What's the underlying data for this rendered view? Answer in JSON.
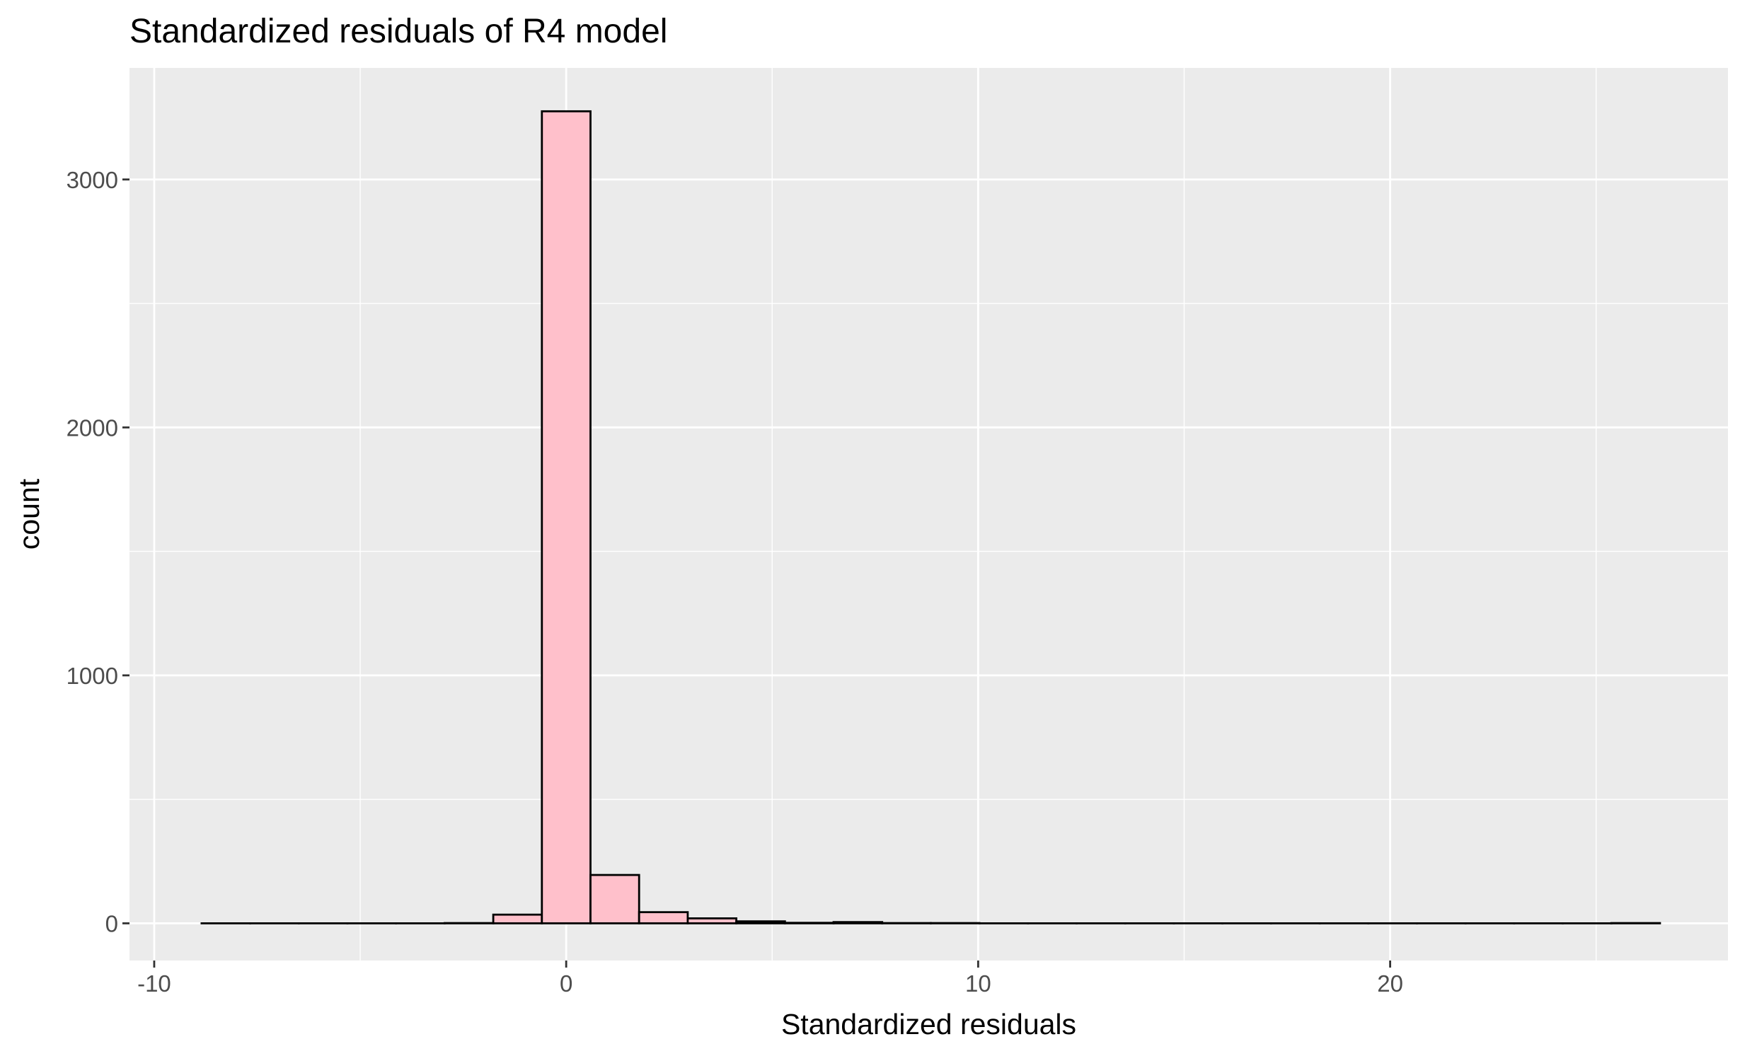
{
  "chart_data": {
    "type": "bar",
    "title": "Standardized residuals of R4 model",
    "xlabel": "Standardized residuals",
    "ylabel": "count",
    "xlim": [
      -10.6,
      28.2
    ],
    "ylim": [
      -150,
      3450
    ],
    "x_ticks": [
      -10,
      0,
      10,
      20
    ],
    "x_tick_labels": [
      "-10",
      "0",
      "10",
      "20"
    ],
    "x_minor_ticks": [
      -5,
      5,
      15,
      25
    ],
    "y_ticks": [
      0,
      1000,
      2000,
      3000
    ],
    "y_tick_labels": [
      "0",
      "1000",
      "2000",
      "3000"
    ],
    "y_minor_ticks": [
      500,
      1500,
      2500
    ],
    "grid": true,
    "bin_width": 1.18,
    "bins": [
      {
        "x": -8.26,
        "count": 0
      },
      {
        "x": -7.08,
        "count": 0
      },
      {
        "x": -5.9,
        "count": 0
      },
      {
        "x": -4.72,
        "count": 0
      },
      {
        "x": -3.54,
        "count": 0
      },
      {
        "x": -2.36,
        "count": 1
      },
      {
        "x": -1.18,
        "count": 35
      },
      {
        "x": 0.0,
        "count": 3275
      },
      {
        "x": 1.18,
        "count": 195
      },
      {
        "x": 2.36,
        "count": 45
      },
      {
        "x": 3.54,
        "count": 20
      },
      {
        "x": 4.72,
        "count": 8
      },
      {
        "x": 5.9,
        "count": 2
      },
      {
        "x": 7.08,
        "count": 5
      },
      {
        "x": 8.26,
        "count": 1
      },
      {
        "x": 9.44,
        "count": 1
      },
      {
        "x": 10.62,
        "count": 0
      },
      {
        "x": 11.8,
        "count": 0
      },
      {
        "x": 12.98,
        "count": 0
      },
      {
        "x": 14.16,
        "count": 0
      },
      {
        "x": 15.34,
        "count": 0
      },
      {
        "x": 16.52,
        "count": 0
      },
      {
        "x": 17.7,
        "count": 0
      },
      {
        "x": 18.88,
        "count": 0
      },
      {
        "x": 20.06,
        "count": 0
      },
      {
        "x": 21.24,
        "count": 0
      },
      {
        "x": 22.42,
        "count": 0
      },
      {
        "x": 23.6,
        "count": 0
      },
      {
        "x": 24.78,
        "count": 0
      },
      {
        "x": 25.96,
        "count": 1
      }
    ],
    "colors": {
      "bar_fill": "#FFC0CB",
      "bar_outline": "#000000",
      "panel_background": "#EBEBEB",
      "grid": "#FFFFFF",
      "tick_text": "#4D4D4D",
      "tick_mark": "#333333",
      "title_text": "#000000"
    }
  }
}
